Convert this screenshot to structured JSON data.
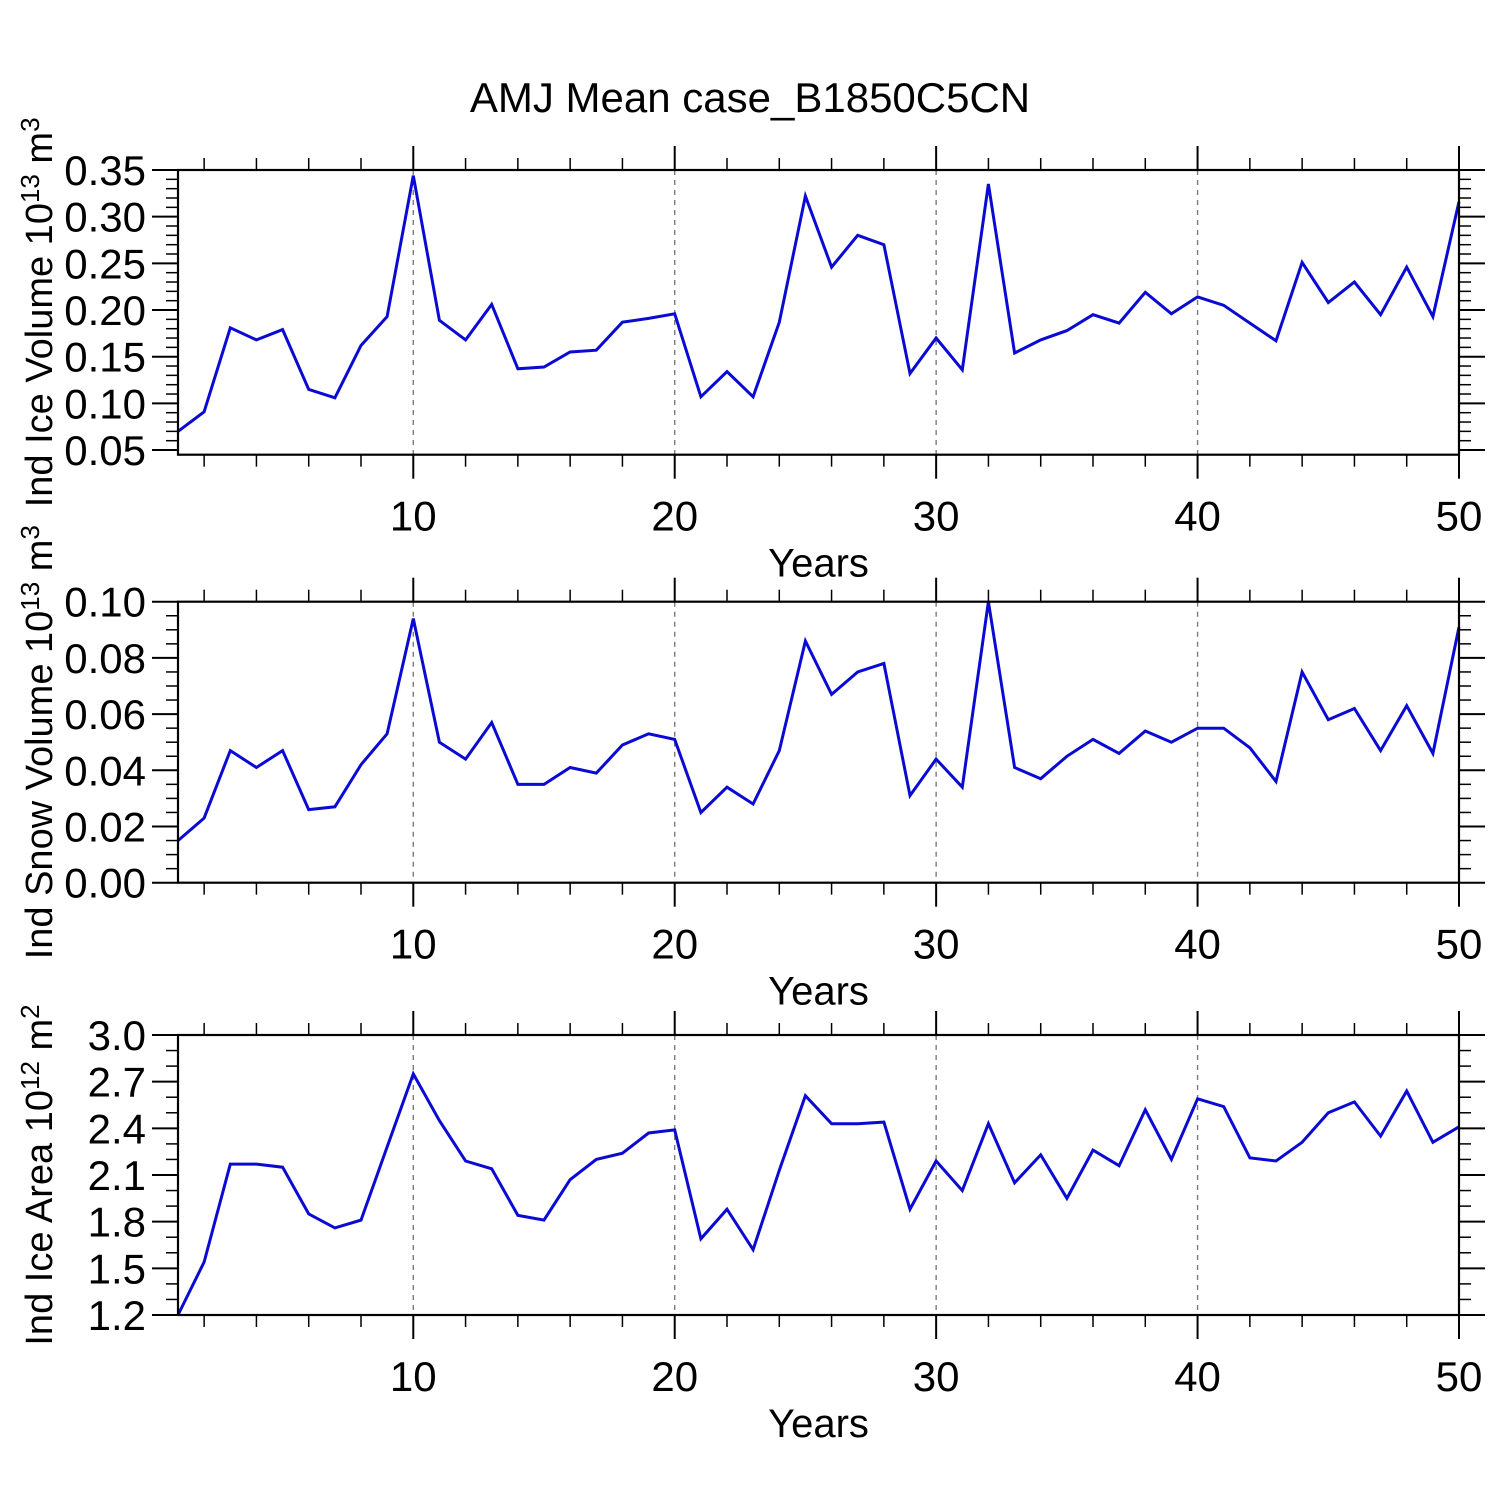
{
  "title": "AMJ Mean case_B1850C5CN",
  "style": {
    "line_color": "#0a0ad2",
    "frame_color": "#000000",
    "grid_color": "#7c7c7c",
    "text_color": "#000000",
    "background": "#ffffff"
  },
  "chart_data": [
    {
      "type": "line",
      "title": "AMJ Mean case_B1850C5CN",
      "xlabel": "Years",
      "ylabel": "Ind Ice Volume 10^13 m^3",
      "ylabel_rich": [
        {
          "t": "Ind Ice Volume 10",
          "sup": false
        },
        {
          "t": "13",
          "sup": true
        },
        {
          "t": " m",
          "sup": false
        },
        {
          "t": "3",
          "sup": true
        }
      ],
      "xlim": [
        1,
        50
      ],
      "ylim": [
        0.045,
        0.35
      ],
      "x_major_ticks": [
        10,
        20,
        30,
        40,
        50
      ],
      "x_minor_step": 2,
      "x_gridlines": [
        10,
        20,
        30,
        40
      ],
      "grid": "vertical-dashed",
      "legend": "none",
      "yticks": [
        0.05,
        0.1,
        0.15,
        0.2,
        0.25,
        0.3,
        0.35
      ],
      "ytick_labels": [
        "0.05",
        "0.10",
        "0.15",
        "0.20",
        "0.25",
        "0.30",
        "0.35"
      ],
      "y_minor_step": 0.01,
      "x": [
        1,
        2,
        3,
        4,
        5,
        6,
        7,
        8,
        9,
        10,
        11,
        12,
        13,
        14,
        15,
        16,
        17,
        18,
        19,
        20,
        21,
        22,
        23,
        24,
        25,
        26,
        27,
        28,
        29,
        30,
        31,
        32,
        33,
        34,
        35,
        36,
        37,
        38,
        39,
        40,
        41,
        42,
        43,
        44,
        45,
        46,
        47,
        48,
        49,
        50
      ],
      "values": [
        0.07,
        0.091,
        0.181,
        0.168,
        0.179,
        0.115,
        0.106,
        0.162,
        0.193,
        0.344,
        0.189,
        0.168,
        0.206,
        0.137,
        0.139,
        0.155,
        0.157,
        0.187,
        0.191,
        0.196,
        0.107,
        0.134,
        0.107,
        0.187,
        0.322,
        0.246,
        0.28,
        0.27,
        0.132,
        0.17,
        0.136,
        0.335,
        0.154,
        0.168,
        0.178,
        0.195,
        0.186,
        0.219,
        0.196,
        0.214,
        0.205,
        0.186,
        0.167,
        0.251,
        0.208,
        0.23,
        0.195,
        0.246,
        0.193,
        0.316
      ]
    },
    {
      "type": "line",
      "title": "",
      "xlabel": "Years",
      "ylabel": "Ind Snow Volume 10^13 m^3",
      "ylabel_rich": [
        {
          "t": "Ind Snow Volume 10",
          "sup": false
        },
        {
          "t": "13",
          "sup": true
        },
        {
          "t": " m",
          "sup": false
        },
        {
          "t": "3",
          "sup": true
        }
      ],
      "xlim": [
        1,
        50
      ],
      "ylim": [
        0.0,
        0.1
      ],
      "x_major_ticks": [
        10,
        20,
        30,
        40,
        50
      ],
      "x_minor_step": 2,
      "x_gridlines": [
        10,
        20,
        30,
        40
      ],
      "grid": "vertical-dashed",
      "legend": "none",
      "yticks": [
        0.0,
        0.02,
        0.04,
        0.06,
        0.08,
        0.1
      ],
      "ytick_labels": [
        "0.00",
        "0.02",
        "0.04",
        "0.06",
        "0.08",
        "0.10"
      ],
      "y_minor_step": 0.005,
      "x": [
        1,
        2,
        3,
        4,
        5,
        6,
        7,
        8,
        9,
        10,
        11,
        12,
        13,
        14,
        15,
        16,
        17,
        18,
        19,
        20,
        21,
        22,
        23,
        24,
        25,
        26,
        27,
        28,
        29,
        30,
        31,
        32,
        33,
        34,
        35,
        36,
        37,
        38,
        39,
        40,
        41,
        42,
        43,
        44,
        45,
        46,
        47,
        48,
        49,
        50
      ],
      "values": [
        0.015,
        0.023,
        0.047,
        0.041,
        0.047,
        0.026,
        0.027,
        0.042,
        0.053,
        0.094,
        0.05,
        0.044,
        0.057,
        0.035,
        0.035,
        0.041,
        0.039,
        0.049,
        0.053,
        0.051,
        0.025,
        0.034,
        0.028,
        0.047,
        0.086,
        0.067,
        0.075,
        0.078,
        0.031,
        0.044,
        0.034,
        0.1,
        0.041,
        0.037,
        0.045,
        0.051,
        0.046,
        0.054,
        0.05,
        0.055,
        0.055,
        0.048,
        0.036,
        0.075,
        0.058,
        0.062,
        0.047,
        0.063,
        0.046,
        0.091
      ]
    },
    {
      "type": "line",
      "title": "",
      "xlabel": "Years",
      "ylabel": "Ind Ice Area 10^12 m^2",
      "ylabel_rich": [
        {
          "t": "Ind Ice Area 10",
          "sup": false
        },
        {
          "t": "12",
          "sup": true
        },
        {
          "t": " m",
          "sup": false
        },
        {
          "t": "2",
          "sup": true
        }
      ],
      "xlim": [
        1,
        50
      ],
      "ylim": [
        1.2,
        3.0
      ],
      "x_major_ticks": [
        10,
        20,
        30,
        40,
        50
      ],
      "x_minor_step": 2,
      "x_gridlines": [
        10,
        20,
        30,
        40
      ],
      "grid": "vertical-dashed",
      "legend": "none",
      "yticks": [
        1.2,
        1.5,
        1.8,
        2.1,
        2.4,
        2.7,
        3.0
      ],
      "ytick_labels": [
        "1.2",
        "1.5",
        "1.8",
        "2.1",
        "2.4",
        "2.7",
        "3.0"
      ],
      "y_minor_step": 0.1,
      "x": [
        1,
        2,
        3,
        4,
        5,
        6,
        7,
        8,
        9,
        10,
        11,
        12,
        13,
        14,
        15,
        16,
        17,
        18,
        19,
        20,
        21,
        22,
        23,
        24,
        25,
        26,
        27,
        28,
        29,
        30,
        31,
        32,
        33,
        34,
        35,
        36,
        37,
        38,
        39,
        40,
        41,
        42,
        43,
        44,
        45,
        46,
        47,
        48,
        49,
        50
      ],
      "values": [
        1.2,
        1.54,
        2.17,
        2.17,
        2.15,
        1.85,
        1.76,
        1.81,
        2.28,
        2.75,
        2.45,
        2.19,
        2.14,
        1.84,
        1.81,
        2.07,
        2.2,
        2.24,
        2.37,
        2.39,
        1.69,
        1.88,
        1.62,
        2.13,
        2.61,
        2.43,
        2.43,
        2.44,
        1.88,
        2.19,
        2.0,
        2.43,
        2.05,
        2.23,
        1.95,
        2.26,
        2.16,
        2.52,
        2.2,
        2.59,
        2.54,
        2.21,
        2.19,
        2.31,
        2.5,
        2.57,
        2.35,
        2.64,
        2.31,
        2.41
      ]
    }
  ]
}
